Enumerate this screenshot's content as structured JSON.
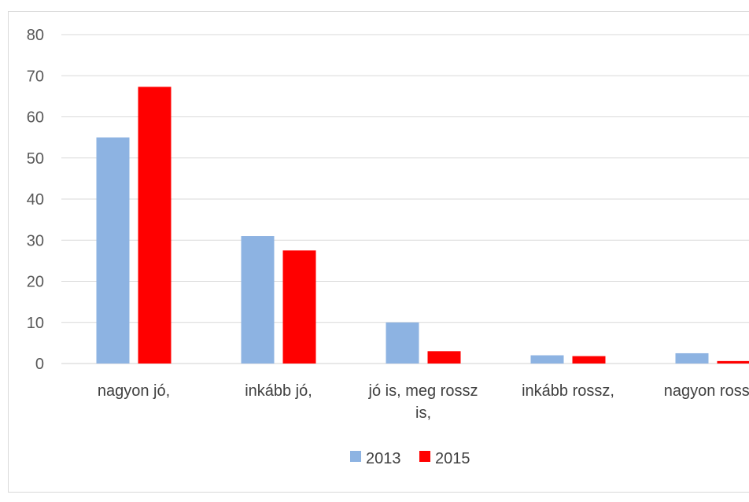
{
  "chart_data": {
    "type": "bar",
    "categories": [
      "nagyon jó,",
      "inkább jó,",
      "jó is, meg rossz is,",
      "inkább rossz,",
      "nagyon rossz,"
    ],
    "category_label_lines": [
      [
        "nagyon jó,"
      ],
      [
        "inkább jó,"
      ],
      [
        "jó is, meg rossz",
        "is,"
      ],
      [
        "inkább rossz,"
      ],
      [
        "nagyon rossz,"
      ]
    ],
    "series": [
      {
        "name": "2013",
        "values": [
          55,
          31,
          10,
          2,
          2.5
        ],
        "color": "#8DB3E2"
      },
      {
        "name": "2015",
        "values": [
          67.3,
          27.5,
          3,
          1.8,
          0.6
        ],
        "color": "#FF0000"
      }
    ],
    "ylim": [
      0,
      80
    ],
    "yticks": [
      0,
      10,
      20,
      30,
      40,
      50,
      60,
      70,
      80
    ],
    "grid": true,
    "legend_position": "bottom",
    "title": "",
    "xlabel": "",
    "ylabel": ""
  }
}
